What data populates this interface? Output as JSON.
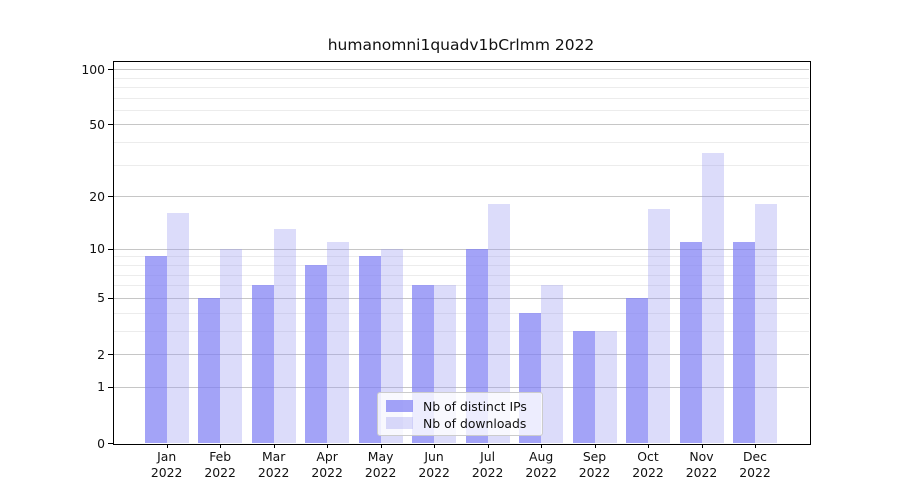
{
  "chart_data": {
    "type": "bar",
    "title": "humanomni1quadv1bCrlmm 2022",
    "x_ticks": [
      {
        "month": "Jan",
        "year": "2022"
      },
      {
        "month": "Feb",
        "year": "2022"
      },
      {
        "month": "Mar",
        "year": "2022"
      },
      {
        "month": "Apr",
        "year": "2022"
      },
      {
        "month": "May",
        "year": "2022"
      },
      {
        "month": "Jun",
        "year": "2022"
      },
      {
        "month": "Jul",
        "year": "2022"
      },
      {
        "month": "Aug",
        "year": "2022"
      },
      {
        "month": "Sep",
        "year": "2022"
      },
      {
        "month": "Oct",
        "year": "2022"
      },
      {
        "month": "Nov",
        "year": "2022"
      },
      {
        "month": "Dec",
        "year": "2022"
      }
    ],
    "series": [
      {
        "name": "Nb of distinct IPs",
        "color_hex": "#a6a6f7",
        "fill": "rgba(128,128,244,0.72)",
        "values": [
          9,
          5,
          6,
          8,
          9,
          6,
          10,
          4,
          3,
          5,
          11,
          11
        ]
      },
      {
        "name": "Nb of downloads",
        "color_hex": "#dcdcfa",
        "fill": "rgba(155,155,241,0.35)",
        "values": [
          16,
          10,
          13,
          11,
          10,
          6,
          18,
          6,
          3,
          17,
          35,
          18
        ]
      }
    ],
    "y_axis": {
      "scale": "log10(value+1)",
      "ticks": [
        0,
        1,
        2,
        5,
        10,
        20,
        50,
        100
      ],
      "minor_gridlines": [
        3,
        4,
        6,
        7,
        8,
        9,
        30,
        40,
        60,
        70,
        80,
        90
      ],
      "max": 110.5
    },
    "grid": true,
    "legend_position": "lower center"
  },
  "colors": {
    "background": "#ffffff",
    "axis": "#000000",
    "text": "#111111",
    "grid_major": "#c6c6c6",
    "grid_minor": "#ececec",
    "legend_border": "#cccccc"
  }
}
